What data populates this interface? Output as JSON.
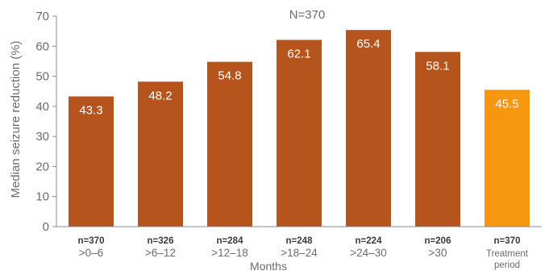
{
  "chart_data": {
    "type": "bar",
    "title": "N=370",
    "ylabel": "Median seizure reduction (%)",
    "xlabel": "Months",
    "ylim": [
      0,
      70
    ],
    "yticks": [
      0,
      10,
      20,
      30,
      40,
      50,
      60,
      70
    ],
    "grid": false,
    "colors": {
      "bar": "#b5541c",
      "highlight": "#f7960f",
      "axis": "#8a8a8a"
    },
    "categories": [
      {
        "n": "n=370",
        "range": ">0–6",
        "value": 43.3,
        "label": "43.3",
        "highlight": false
      },
      {
        "n": "n=326",
        "range": ">6–12",
        "value": 48.2,
        "label": "48.2",
        "highlight": false
      },
      {
        "n": "n=284",
        "range": ">12–18",
        "value": 54.8,
        "label": "54.8",
        "highlight": false
      },
      {
        "n": "n=248",
        "range": ">18–24",
        "value": 62.1,
        "label": "62.1",
        "highlight": false
      },
      {
        "n": "n=224",
        "range": ">24–30",
        "value": 65.4,
        "label": "65.4",
        "highlight": false
      },
      {
        "n": "n=206",
        "range": ">30",
        "value": 58.1,
        "label": "58.1",
        "highlight": false
      },
      {
        "n": "n=370",
        "range": "Treatment period",
        "value": 45.5,
        "label": "45.5",
        "highlight": true
      }
    ]
  }
}
